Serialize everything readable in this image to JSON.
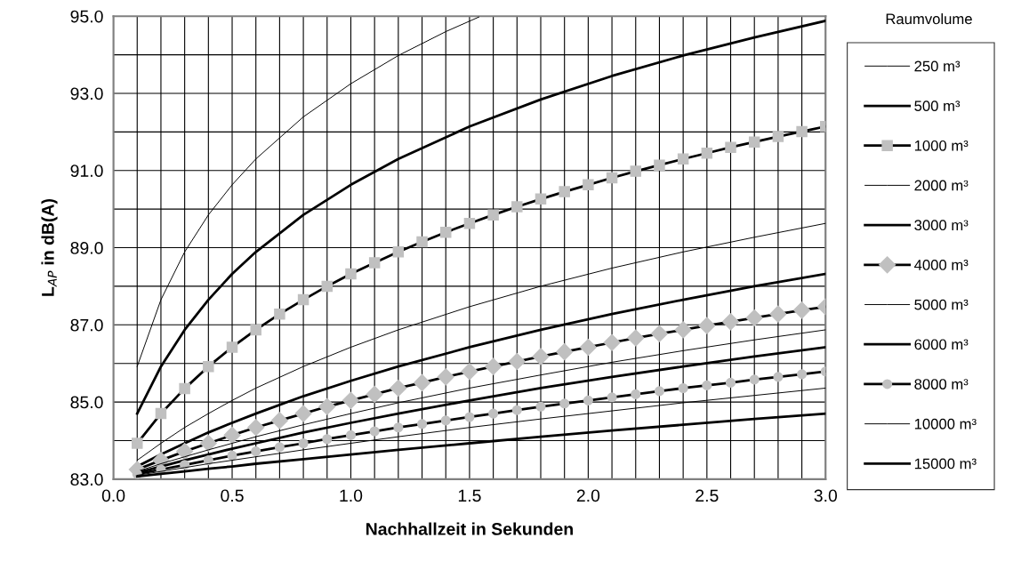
{
  "chart_data": {
    "type": "line",
    "xlabel": "Nachhallzeit in Sekunden",
    "ylabel": "L$_{AP}$ in dB(A)",
    "legend_title": "Raumvolume",
    "legend": "right",
    "grid": true,
    "xlim": [
      0.0,
      3.0
    ],
    "ylim": [
      83.0,
      95.0
    ],
    "xticks": [
      {
        "value": 0.0,
        "label": "0.0"
      },
      {
        "value": 0.1,
        "label": null
      },
      {
        "value": 0.2,
        "label": null
      },
      {
        "value": 0.3,
        "label": null
      },
      {
        "value": 0.4,
        "label": null
      },
      {
        "value": 0.5,
        "label": "0.5"
      },
      {
        "value": 0.6,
        "label": null
      },
      {
        "value": 0.7,
        "label": null
      },
      {
        "value": 0.8,
        "label": null
      },
      {
        "value": 0.9,
        "label": null
      },
      {
        "value": 1.0,
        "label": "1.0"
      },
      {
        "value": 1.1,
        "label": null
      },
      {
        "value": 1.2,
        "label": null
      },
      {
        "value": 1.3,
        "label": null
      },
      {
        "value": 1.4,
        "label": null
      },
      {
        "value": 1.5,
        "label": "1.5"
      },
      {
        "value": 1.6,
        "label": null
      },
      {
        "value": 1.7,
        "label": null
      },
      {
        "value": 1.8,
        "label": null
      },
      {
        "value": 1.9,
        "label": null
      },
      {
        "value": 2.0,
        "label": "2.0"
      },
      {
        "value": 2.1,
        "label": null
      },
      {
        "value": 2.2,
        "label": null
      },
      {
        "value": 2.3,
        "label": null
      },
      {
        "value": 2.4,
        "label": null
      },
      {
        "value": 2.5,
        "label": "2.5"
      },
      {
        "value": 2.6,
        "label": null
      },
      {
        "value": 2.7,
        "label": null
      },
      {
        "value": 2.8,
        "label": null
      },
      {
        "value": 2.9,
        "label": null
      },
      {
        "value": 3.0,
        "label": "3.0"
      }
    ],
    "yticks": [
      {
        "value": 83.0,
        "label": "83.0"
      },
      {
        "value": 84.0,
        "label": null
      },
      {
        "value": 85.0,
        "label": "85.0"
      },
      {
        "value": 86.0,
        "label": null
      },
      {
        "value": 87.0,
        "label": "87.0"
      },
      {
        "value": 88.0,
        "label": null
      },
      {
        "value": 89.0,
        "label": "89.0"
      },
      {
        "value": 90.0,
        "label": null
      },
      {
        "value": 91.0,
        "label": "91.0"
      },
      {
        "value": 92.0,
        "label": null
      },
      {
        "value": 93.0,
        "label": "93.0"
      },
      {
        "value": 94.0,
        "label": null
      },
      {
        "value": 95.0,
        "label": "95.0"
      }
    ],
    "series": [
      {
        "name": "250 m³",
        "color": "#000000",
        "marker": "none",
        "x": [
          0.1,
          0.2,
          0.3,
          0.4,
          0.5,
          0.6,
          0.8,
          1.0,
          1.2,
          1.4,
          1.54
        ],
        "values": [
          85.92,
          87.65,
          88.89,
          89.85,
          90.63,
          91.3,
          92.39,
          93.25,
          93.98,
          94.6,
          94.98
        ]
      },
      {
        "name": "500 m³",
        "color": "#000000",
        "marker": "none",
        "x": [
          0.1,
          0.2,
          0.3,
          0.4,
          0.5,
          0.6,
          0.8,
          1.0,
          1.2,
          1.5,
          1.8,
          2.1,
          2.4,
          2.7,
          3.0
        ],
        "values": [
          84.7,
          85.92,
          86.87,
          87.65,
          88.32,
          88.89,
          89.85,
          90.63,
          91.3,
          92.14,
          92.84,
          93.45,
          93.98,
          94.45,
          94.88
        ]
      },
      {
        "name": "1000 m³",
        "color": "#000000",
        "marker": "square",
        "x": [
          0.1,
          0.2,
          0.3,
          0.4,
          0.5,
          0.6,
          0.7,
          0.8,
          0.9,
          1.0,
          1.1,
          1.2,
          1.3,
          1.4,
          1.5,
          1.6,
          1.7,
          1.8,
          1.9,
          2.0,
          2.1,
          2.2,
          2.3,
          2.4,
          2.5,
          2.6,
          2.7,
          2.8,
          2.9,
          3.0
        ],
        "values": [
          83.93,
          84.7,
          85.35,
          85.92,
          86.42,
          86.87,
          87.28,
          87.65,
          88.0,
          88.32,
          88.61,
          88.89,
          89.15,
          89.4,
          89.63,
          89.85,
          90.06,
          90.26,
          90.45,
          90.63,
          90.81,
          90.98,
          91.14,
          91.3,
          91.45,
          91.6,
          91.74,
          91.88,
          92.01,
          92.14
        ]
      },
      {
        "name": "2000 m³",
        "color": "#000000",
        "marker": "none",
        "x": [
          0.1,
          0.2,
          0.3,
          0.4,
          0.5,
          0.6,
          0.8,
          1.0,
          1.2,
          1.5,
          1.8,
          2.1,
          2.4,
          2.7,
          3.0
        ],
        "values": [
          83.49,
          83.93,
          84.34,
          84.7,
          85.04,
          85.36,
          85.92,
          86.42,
          86.87,
          87.47,
          88.0,
          88.47,
          88.89,
          89.27,
          89.63
        ]
      },
      {
        "name": "3000 m³",
        "color": "#000000",
        "marker": "none",
        "x": [
          0.1,
          0.2,
          0.3,
          0.4,
          0.5,
          0.6,
          0.8,
          1.0,
          1.2,
          1.5,
          1.8,
          2.1,
          2.4,
          2.7,
          3.0
        ],
        "values": [
          83.33,
          83.64,
          83.93,
          84.21,
          84.46,
          84.7,
          85.15,
          85.55,
          85.92,
          86.42,
          86.87,
          87.28,
          87.65,
          88.0,
          88.32
        ]
      },
      {
        "name": "4000 m³",
        "color": "#000000",
        "marker": "diamond",
        "x": [
          0.1,
          0.2,
          0.3,
          0.4,
          0.5,
          0.6,
          0.7,
          0.8,
          0.9,
          1.0,
          1.1,
          1.2,
          1.3,
          1.4,
          1.5,
          1.6,
          1.7,
          1.8,
          1.9,
          2.0,
          2.1,
          2.2,
          2.3,
          2.4,
          2.5,
          2.6,
          2.7,
          2.8,
          2.9,
          3.0
        ],
        "values": [
          83.25,
          83.49,
          83.72,
          83.93,
          84.14,
          84.34,
          84.52,
          84.7,
          84.88,
          85.04,
          85.2,
          85.36,
          85.5,
          85.65,
          85.79,
          85.92,
          86.05,
          86.18,
          86.3,
          86.42,
          86.54,
          86.66,
          86.77,
          86.87,
          86.98,
          87.08,
          87.18,
          87.28,
          87.38,
          87.47
        ]
      },
      {
        "name": "5000 m³",
        "color": "#000000",
        "marker": "none",
        "x": [
          0.1,
          0.2,
          0.3,
          0.4,
          0.5,
          0.6,
          0.8,
          1.0,
          1.2,
          1.5,
          1.8,
          2.1,
          2.4,
          2.7,
          3.0
        ],
        "values": [
          83.2,
          83.4,
          83.58,
          83.76,
          83.93,
          84.1,
          84.41,
          84.7,
          84.98,
          85.36,
          85.7,
          86.03,
          86.33,
          86.61,
          86.87
        ]
      },
      {
        "name": "6000 m³",
        "color": "#000000",
        "marker": "none",
        "x": [
          0.1,
          0.2,
          0.3,
          0.4,
          0.5,
          0.6,
          0.8,
          1.0,
          1.2,
          1.5,
          1.8,
          2.1,
          2.4,
          2.7,
          3.0
        ],
        "values": [
          83.17,
          83.33,
          83.49,
          83.64,
          83.79,
          83.93,
          84.21,
          84.46,
          84.7,
          85.04,
          85.36,
          85.65,
          85.92,
          86.18,
          86.42
        ]
      },
      {
        "name": "8000 m³",
        "color": "#000000",
        "marker": "circle",
        "x": [
          0.1,
          0.2,
          0.3,
          0.4,
          0.5,
          0.6,
          0.7,
          0.8,
          0.9,
          1.0,
          1.1,
          1.2,
          1.3,
          1.4,
          1.5,
          1.6,
          1.7,
          1.8,
          1.9,
          2.0,
          2.1,
          2.2,
          2.3,
          2.4,
          2.5,
          2.6,
          2.7,
          2.8,
          2.9,
          3.0
        ],
        "values": [
          83.13,
          83.25,
          83.37,
          83.49,
          83.61,
          83.72,
          83.83,
          83.93,
          84.04,
          84.14,
          84.24,
          84.34,
          84.43,
          84.52,
          84.61,
          84.7,
          84.79,
          84.88,
          84.96,
          85.04,
          85.12,
          85.2,
          85.28,
          85.36,
          85.43,
          85.5,
          85.58,
          85.65,
          85.72,
          85.79
        ]
      },
      {
        "name": "10000 m³",
        "color": "#000000",
        "marker": "none",
        "x": [
          0.1,
          0.2,
          0.3,
          0.4,
          0.5,
          0.6,
          0.8,
          1.0,
          1.2,
          1.5,
          1.8,
          2.1,
          2.4,
          2.7,
          3.0
        ],
        "values": [
          83.1,
          83.2,
          83.3,
          83.4,
          83.49,
          83.58,
          83.76,
          83.93,
          84.1,
          84.34,
          84.56,
          84.77,
          84.98,
          85.17,
          85.36
        ]
      },
      {
        "name": "15000 m³",
        "color": "#000000",
        "marker": "none",
        "x": [
          0.1,
          0.2,
          0.3,
          0.4,
          0.5,
          0.6,
          0.8,
          1.0,
          1.2,
          1.5,
          1.8,
          2.1,
          2.4,
          2.7,
          3.0
        ],
        "values": [
          83.07,
          83.14,
          83.2,
          83.27,
          83.33,
          83.4,
          83.52,
          83.64,
          83.76,
          83.93,
          84.1,
          84.26,
          84.41,
          84.56,
          84.7
        ]
      }
    ]
  }
}
